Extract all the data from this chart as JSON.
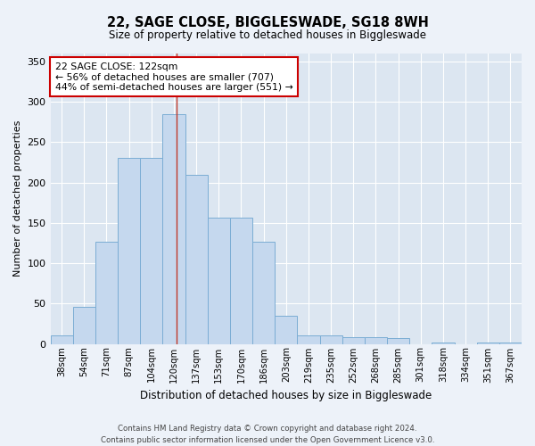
{
  "title_line1": "22, SAGE CLOSE, BIGGLESWADE, SG18 8WH",
  "title_line2": "Size of property relative to detached houses in Biggleswade",
  "xlabel": "Distribution of detached houses by size in Biggleswade",
  "ylabel": "Number of detached properties",
  "annotation_line1": "22 SAGE CLOSE: 122sqm",
  "annotation_line2": "← 56% of detached houses are smaller (707)",
  "annotation_line3": "44% of semi-detached houses are larger (551) →",
  "categories": [
    "38sqm",
    "54sqm",
    "71sqm",
    "87sqm",
    "104sqm",
    "120sqm",
    "137sqm",
    "153sqm",
    "170sqm",
    "186sqm",
    "203sqm",
    "219sqm",
    "235sqm",
    "252sqm",
    "268sqm",
    "285sqm",
    "301sqm",
    "318sqm",
    "334sqm",
    "351sqm",
    "367sqm"
  ],
  "values": [
    10,
    46,
    127,
    231,
    231,
    285,
    210,
    157,
    157,
    127,
    35,
    10,
    10,
    8,
    8,
    7,
    0,
    2,
    0,
    2,
    2
  ],
  "bar_color": "#c5d8ee",
  "bar_edge_color": "#7badd4",
  "ylim": [
    0,
    360
  ],
  "yticks": [
    0,
    50,
    100,
    150,
    200,
    250,
    300,
    350
  ],
  "background_color": "#edf2f9",
  "plot_bg_color": "#dce6f1",
  "grid_color": "#ffffff",
  "vline_color": "#c0392b",
  "ann_box_color": "#ffffff",
  "ann_edge_color": "#cc0000",
  "footer_line1": "Contains HM Land Registry data © Crown copyright and database right 2024.",
  "footer_line2": "Contains public sector information licensed under the Open Government Licence v3.0."
}
